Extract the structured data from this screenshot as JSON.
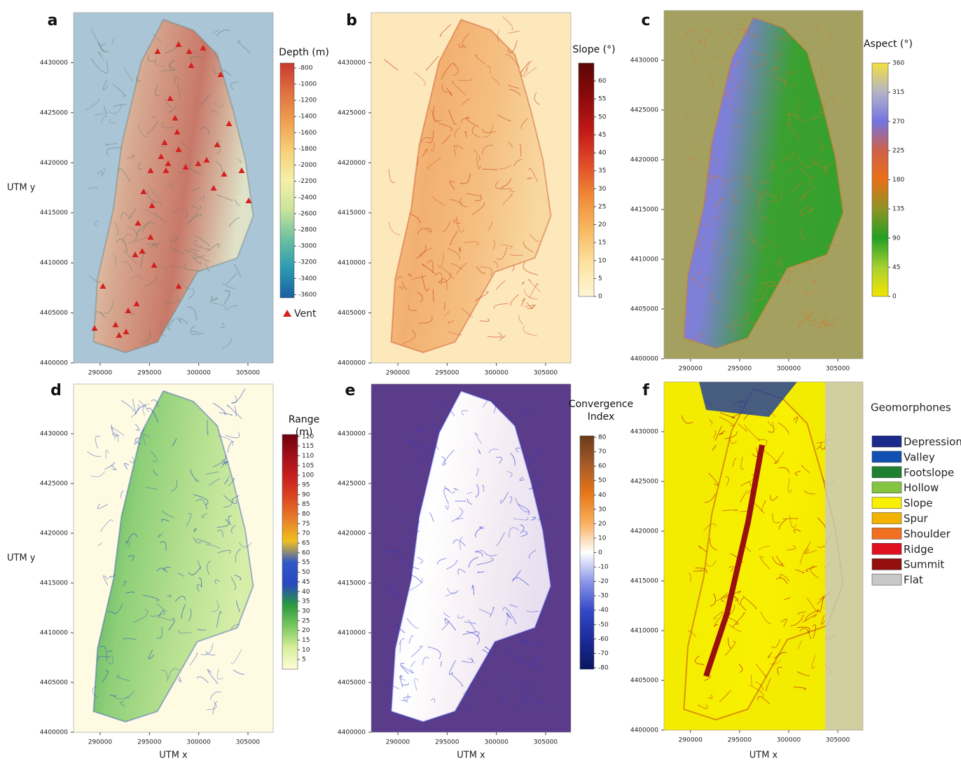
{
  "panels": [
    {
      "label": "a",
      "xlim": [
        287300,
        307560
      ],
      "ylim": [
        4400000,
        4435000
      ],
      "xticks": [
        290000,
        295000,
        300000,
        305000
      ],
      "yticks": [
        4400000,
        4405000,
        4410000,
        4415000,
        4420000,
        4425000,
        4430000
      ],
      "ylabel": "UTM y",
      "colorbar": {
        "title": "Depth (m)",
        "lim": [
          -3640,
          -740
        ],
        "ticks": [
          -800,
          -1000,
          -1200,
          -1400,
          -1600,
          -1800,
          -2000,
          -2200,
          -2400,
          -2600,
          -2800,
          -3000,
          -3200,
          -3400,
          -3600
        ],
        "colors": [
          "#1a5fa0",
          "#2a9ab0",
          "#6cc0a0",
          "#c8e49a",
          "#f6f0a8",
          "#f6d078",
          "#f0a050",
          "#e07040",
          "#c83a30"
        ]
      },
      "legend": {
        "label": "Vent",
        "color": "#d42020"
      }
    },
    {
      "label": "b",
      "xlim": [
        287300,
        307560
      ],
      "ylim": [
        4400000,
        4435000
      ],
      "xticks": [
        290000,
        295000,
        300000,
        305000
      ],
      "yticks": [
        4400000,
        4405000,
        4410000,
        4415000,
        4420000,
        4425000,
        4430000
      ],
      "colorbar": {
        "title": "Slope (°)",
        "lim": [
          0,
          65
        ],
        "ticks": [
          0,
          5,
          10,
          15,
          20,
          25,
          30,
          35,
          40,
          45,
          50,
          55,
          60
        ],
        "colors": [
          "#fff6d6",
          "#fde2a0",
          "#f8b860",
          "#f08a38",
          "#e04a28",
          "#c01818",
          "#8a0a0a",
          "#5c0606"
        ]
      }
    },
    {
      "label": "c",
      "xlim": [
        287300,
        307560
      ],
      "ylim": [
        4400000,
        4435000
      ],
      "xticks": [
        290000,
        295000,
        300000,
        305000
      ],
      "yticks": [
        4400000,
        4405000,
        4410000,
        4415000,
        4420000,
        4425000,
        4430000
      ],
      "colorbar": {
        "title": "Aspect (°)",
        "lim": [
          0,
          360
        ],
        "ticks": [
          0,
          45,
          90,
          135,
          180,
          225,
          270,
          315,
          360
        ],
        "colors": [
          "#f2e400",
          "#a8d030",
          "#22a024",
          "#8c9424",
          "#e87018",
          "#d06048",
          "#7474e0",
          "#b4b4c8",
          "#f2e040"
        ]
      }
    },
    {
      "label": "d",
      "xlim": [
        287300,
        307560
      ],
      "ylim": [
        4400000,
        4435000
      ],
      "xticks": [
        290000,
        295000,
        300000,
        305000
      ],
      "yticks": [
        4400000,
        4405000,
        4410000,
        4415000,
        4420000,
        4425000,
        4430000
      ],
      "ylabel": "UTM y",
      "xlabel": "UTM x",
      "colorbar": {
        "title": "Range (m)",
        "lim": [
          0,
          121
        ],
        "ticks": [
          5,
          10,
          15,
          20,
          25,
          30,
          35,
          40,
          45,
          50,
          55,
          60,
          65,
          70,
          75,
          80,
          85,
          90,
          95,
          100,
          105,
          110,
          115,
          120
        ],
        "colors": [
          "#fffbd8",
          "#d8ef9c",
          "#7cc860",
          "#2a9a40",
          "#2848c0",
          "#3058c8",
          "#f0c020",
          "#e88028",
          "#dc4a20",
          "#c82020",
          "#a01018",
          "#700010"
        ]
      }
    },
    {
      "label": "e",
      "xlim": [
        287300,
        307560
      ],
      "ylim": [
        4400000,
        4435000
      ],
      "xticks": [
        290000,
        295000,
        300000,
        305000
      ],
      "yticks": [
        4400000,
        4405000,
        4410000,
        4415000,
        4420000,
        4425000,
        4430000
      ],
      "xlabel": "UTM x",
      "colorbar": {
        "title": "Convergence Index",
        "lim": [
          -81,
          81
        ],
        "ticks": [
          80,
          70,
          60,
          50,
          40,
          30,
          20,
          10,
          0,
          -10,
          -20,
          -30,
          -40,
          -50,
          -60,
          -70,
          -80
        ],
        "colors": [
          "#0a1660",
          "#1c2a98",
          "#3448c8",
          "#8a96e8",
          "#ffffff",
          "#f8b060",
          "#e87818",
          "#a85a28",
          "#6a3a1a"
        ]
      }
    },
    {
      "label": "f",
      "xlim": [
        287300,
        307560
      ],
      "ylim": [
        4400000,
        4435000
      ],
      "xticks": [
        290000,
        295000,
        300000,
        305000
      ],
      "yticks": [
        4400000,
        4405000,
        4410000,
        4415000,
        4420000,
        4425000,
        4430000
      ],
      "xlabel": "UTM x",
      "legend": {
        "title": "Geomorphones",
        "classes": [
          {
            "name": "Depression",
            "color": "#1c2a8c"
          },
          {
            "name": "Valley",
            "color": "#1050b0"
          },
          {
            "name": "Footslope",
            "color": "#1e8030"
          },
          {
            "name": "Hollow",
            "color": "#84c440"
          },
          {
            "name": "Slope",
            "color": "#f8f000"
          },
          {
            "name": "Spur",
            "color": "#f2b400"
          },
          {
            "name": "Shoulder",
            "color": "#f07020"
          },
          {
            "name": "Ridge",
            "color": "#e01020"
          },
          {
            "name": "Summit",
            "color": "#941010"
          },
          {
            "name": "Flat",
            "color": "#c8c8c8"
          }
        ]
      }
    }
  ]
}
